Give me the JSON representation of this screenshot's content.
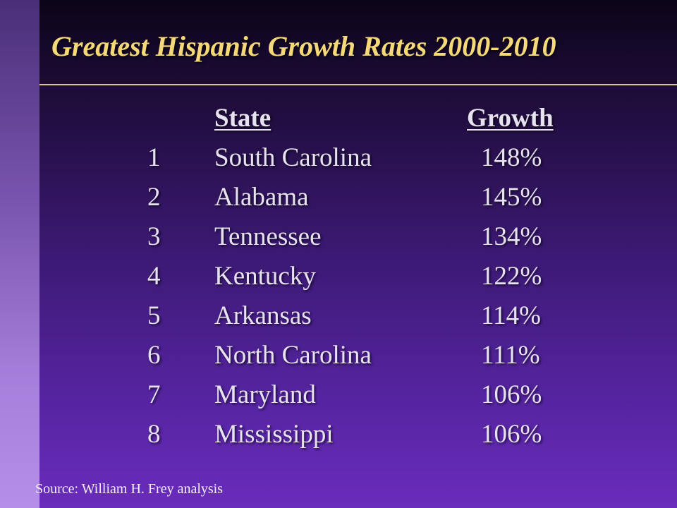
{
  "slide": {
    "title": "Greatest Hispanic Growth Rates 2000-2010",
    "colors": {
      "title": "#f5d978",
      "text": "#e6e2f0",
      "background_top": "#0c0418",
      "background_bottom": "#6a2cbc",
      "left_bar": "#b48ee8"
    }
  },
  "table": {
    "headers": {
      "state": "State",
      "growth": "Growth"
    },
    "rows": [
      {
        "rank": "1",
        "state": "South Carolina",
        "growth": "148%"
      },
      {
        "rank": "2",
        "state": "Alabama",
        "growth": "145%"
      },
      {
        "rank": "3",
        "state": "Tennessee",
        "growth": "134%"
      },
      {
        "rank": "4",
        "state": "Kentucky",
        "growth": "122%"
      },
      {
        "rank": "5",
        "state": "Arkansas",
        "growth": "114%"
      },
      {
        "rank": "6",
        "state": "North Carolina",
        "growth": "111%"
      },
      {
        "rank": "7",
        "state": "Maryland",
        "growth": "106%"
      },
      {
        "rank": "8",
        "state": "Mississippi",
        "growth": "106%"
      }
    ]
  },
  "footer": {
    "source": "Source: William H. Frey analysis"
  }
}
